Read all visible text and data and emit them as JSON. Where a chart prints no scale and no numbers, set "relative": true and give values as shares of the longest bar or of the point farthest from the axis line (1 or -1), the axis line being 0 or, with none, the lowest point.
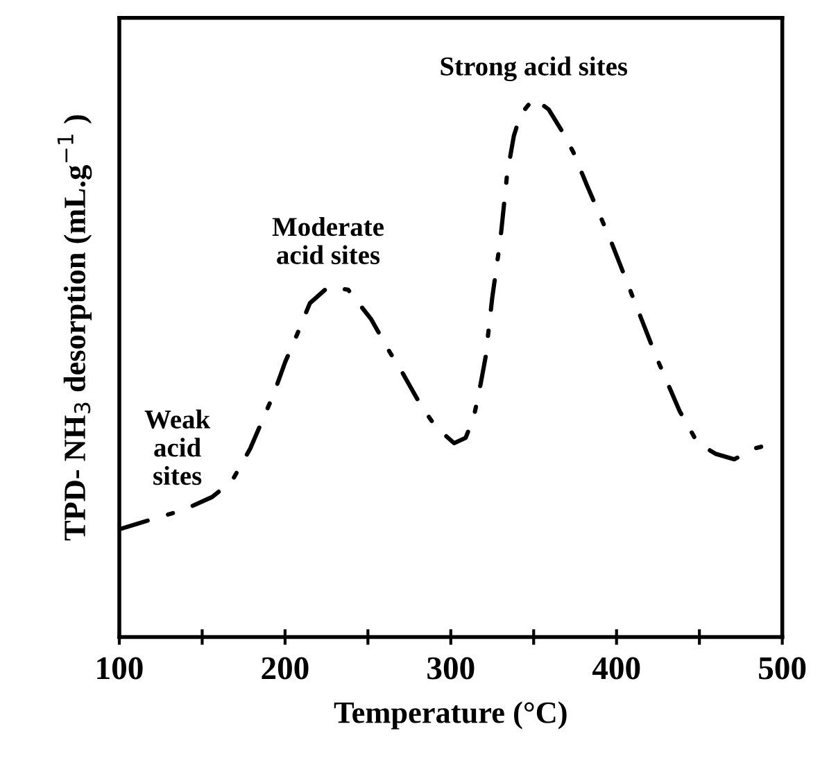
{
  "chart_data": {
    "type": "line",
    "relative": true,
    "xlabel": "Temperature (°C)",
    "ylabel": "TPD- NH$_{3}$ desorption (mL.g$^{−1}$ )",
    "xlim": [
      100,
      500
    ],
    "xticks": [
      100,
      {
        "value": 150,
        "label": null
      },
      200,
      {
        "value": 250,
        "label": null
      },
      300,
      {
        "value": 350,
        "label": null
      },
      400,
      {
        "value": 450,
        "label": null
      },
      500
    ],
    "x": [
      100,
      121,
      138,
      156,
      168,
      179,
      193,
      200,
      207,
      215,
      226,
      238,
      252,
      263,
      271,
      282,
      291,
      302,
      309,
      314,
      318,
      321,
      325,
      330,
      334,
      338,
      342,
      350,
      359,
      367,
      374,
      382,
      396,
      410,
      424,
      438,
      449,
      460,
      471,
      483,
      496
    ],
    "series": [
      {
        "color": "#000000",
        "values": [
          0.2,
          0.22,
          0.235,
          0.26,
          0.29,
          0.35,
          0.45,
          0.51,
          0.56,
          0.62,
          0.65,
          0.645,
          0.59,
          0.53,
          0.49,
          0.43,
          0.39,
          0.36,
          0.37,
          0.41,
          0.47,
          0.52,
          0.63,
          0.74,
          0.86,
          0.93,
          0.97,
          1.0,
          0.98,
          0.94,
          0.9,
          0.84,
          0.74,
          0.63,
          0.52,
          0.42,
          0.36,
          0.34,
          0.33,
          0.35,
          0.36
        ]
      }
    ],
    "line_style": "dashdot",
    "marker": "none",
    "grid": false,
    "legend": false,
    "annotations": [
      {
        "text": "Weak\nacid\nsites",
        "x": 135,
        "y": 0.24
      },
      {
        "text": "Moderate\nacid sites",
        "x": 226,
        "y": 0.65
      },
      {
        "text": "Strong acid sites",
        "x": 350,
        "y": 1.0
      }
    ]
  }
}
